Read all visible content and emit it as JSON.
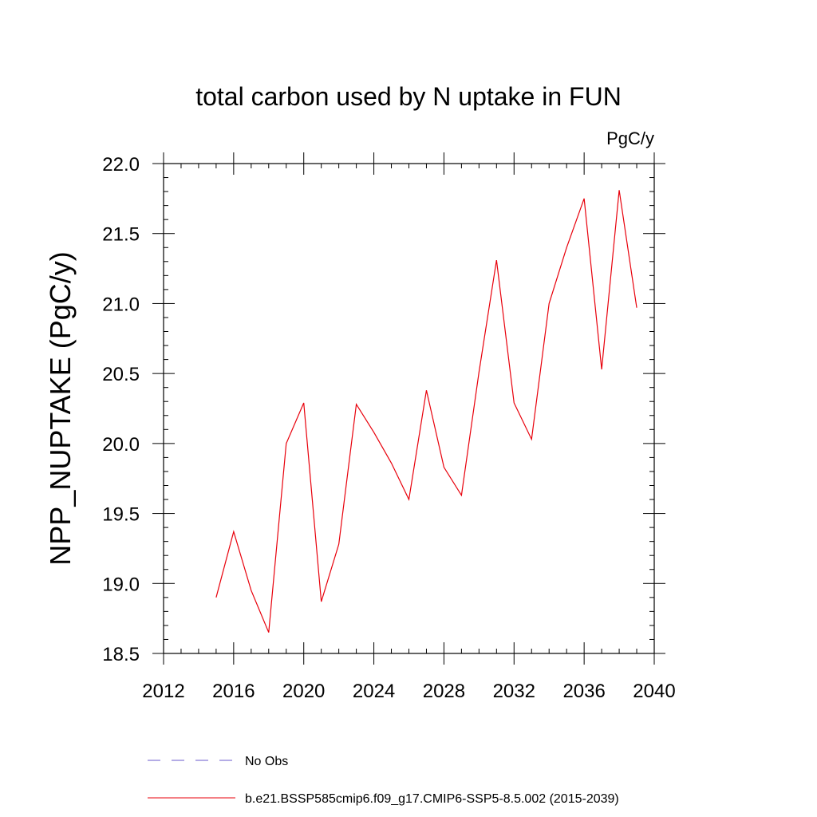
{
  "chart_data": {
    "type": "line",
    "title": "total carbon used by N uptake in FUN",
    "units": "PgC/y",
    "ylabel": "NPP_NUPTAKE  (PgC/y)",
    "xlabel": "",
    "xlim": [
      2012,
      2040
    ],
    "ylim": [
      18.5,
      22.0
    ],
    "x_ticks": [
      2012,
      2016,
      2020,
      2024,
      2028,
      2032,
      2036,
      2040
    ],
    "y_ticks": [
      18.5,
      19.0,
      19.5,
      20.0,
      20.5,
      21.0,
      21.5,
      22.0
    ],
    "y_tick_labels": [
      "18.5",
      "19.0",
      "19.5",
      "20.0",
      "20.5",
      "21.0",
      "21.5",
      "22.0"
    ],
    "grid": false,
    "legend_placement": "bottom",
    "series": [
      {
        "name": "b.e21.BSSP585cmip6.f09_g17.CMIP6-SSP5-8.5.002 (2015-2039)",
        "color": "#e8000b",
        "style": "solid",
        "x": [
          2015,
          2016,
          2017,
          2018,
          2019,
          2020,
          2021,
          2022,
          2023,
          2024,
          2025,
          2026,
          2027,
          2028,
          2029,
          2030,
          2031,
          2032,
          2033,
          2034,
          2035,
          2036,
          2037,
          2038,
          2039
        ],
        "y": [
          18.9,
          19.37,
          18.95,
          18.65,
          20.0,
          20.29,
          18.87,
          19.28,
          20.28,
          20.08,
          19.86,
          19.6,
          20.38,
          19.83,
          19.63,
          20.51,
          21.31,
          20.29,
          20.03,
          21.0,
          21.4,
          21.75,
          20.53,
          21.81,
          20.97
        ]
      }
    ],
    "legend": [
      {
        "label": "No Obs",
        "color": "#6a5acd",
        "style": "dashed"
      },
      {
        "label": "b.e21.BSSP585cmip6.f09_g17.CMIP6-SSP5-8.5.002 (2015-2039)",
        "color": "#e8000b",
        "style": "solid"
      }
    ]
  }
}
